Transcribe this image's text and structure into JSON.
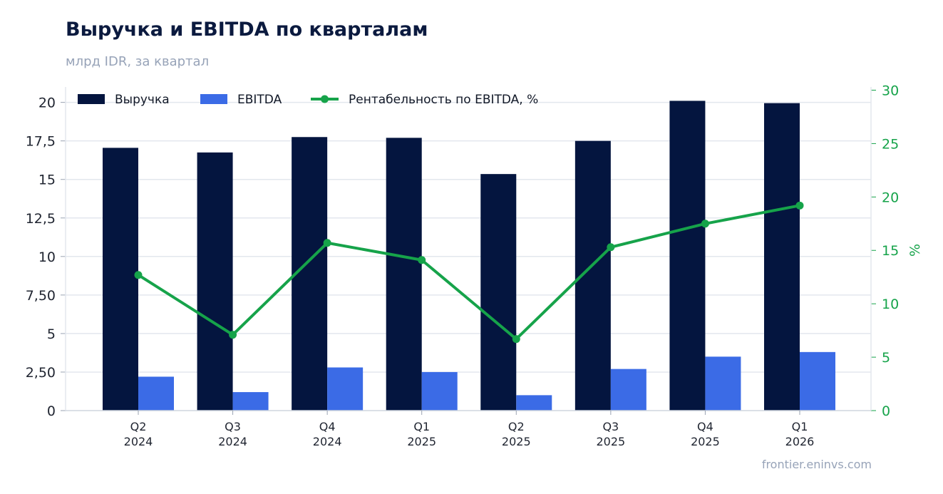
{
  "title": "Выручка и EBITDA по кварталам",
  "subtitle": "млрд IDR, за квартал",
  "source": "frontier.eninvs.com",
  "colors": {
    "revenue": "#04153f",
    "ebitda": "#3b6be6",
    "margin": "#16a34a",
    "grid": "#e3e7ee"
  },
  "chart_data": {
    "type": "bar",
    "categories": [
      [
        "Q2",
        "2024"
      ],
      [
        "Q3",
        "2024"
      ],
      [
        "Q4",
        "2024"
      ],
      [
        "Q1",
        "2025"
      ],
      [
        "Q2",
        "2025"
      ],
      [
        "Q3",
        "2025"
      ],
      [
        "Q4",
        "2025"
      ],
      [
        "Q1",
        "2026"
      ]
    ],
    "series": [
      {
        "name": "Выручка",
        "type": "bar",
        "axis": "left",
        "values": [
          17.05,
          16.75,
          17.75,
          17.7,
          15.35,
          17.5,
          20.1,
          19.95
        ]
      },
      {
        "name": "EBITDA",
        "type": "bar",
        "axis": "left",
        "values": [
          2.2,
          1.2,
          2.8,
          2.5,
          1.0,
          2.7,
          3.5,
          3.8
        ]
      },
      {
        "name": "Рентабельность по EBITDA, %",
        "type": "line",
        "axis": "right",
        "values": [
          12.7,
          7.1,
          15.7,
          14.1,
          6.7,
          15.3,
          17.5,
          19.2
        ]
      }
    ],
    "y_left": {
      "ylim": [
        0,
        21
      ],
      "ticks": [
        0,
        2.5,
        5,
        7.5,
        10,
        12.5,
        15,
        17.5,
        20
      ],
      "tick_labels": [
        "0",
        "2,50",
        "5",
        "7,50",
        "10",
        "12,5",
        "15",
        "17,5",
        "20"
      ]
    },
    "y_right": {
      "label": "%",
      "ylim": [
        0,
        30.3
      ],
      "ticks": [
        0,
        5,
        10,
        15,
        20,
        25,
        30
      ],
      "tick_labels": [
        "0",
        "5",
        "10",
        "15",
        "20",
        "25",
        "30"
      ]
    },
    "grid": true,
    "legend": "top-left"
  }
}
